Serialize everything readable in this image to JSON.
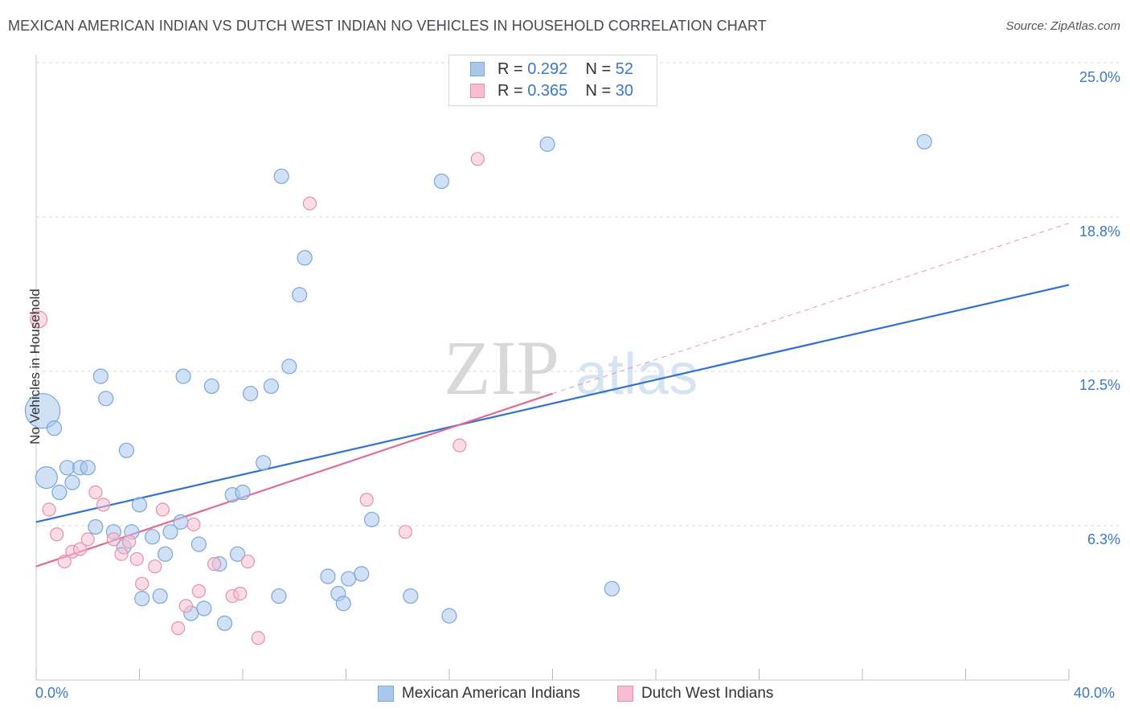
{
  "header": {
    "title": "MEXICAN AMERICAN INDIAN VS DUTCH WEST INDIAN NO VEHICLES IN HOUSEHOLD CORRELATION CHART",
    "source": "Source: ZipAtlas.com"
  },
  "watermark": {
    "zip": "ZIP",
    "atlas": "atlas"
  },
  "legend": {
    "series1": {
      "r_label": "R =",
      "r_value": "0.292",
      "n_label": "N =",
      "n_value": "52"
    },
    "series2": {
      "r_label": "R =",
      "r_value": "0.365",
      "n_label": "N =",
      "n_value": "30"
    }
  },
  "colors": {
    "blue_fill": "#aac8ee",
    "blue_stroke": "#7aa6db",
    "blue_line": "#2f72cf",
    "pink_fill": "#f6bfd0",
    "pink_stroke": "#e88fab",
    "pink_line": "#e06a93",
    "tick_text": "#3a78c9",
    "grid": "#d9d9d9"
  },
  "chart_data": {
    "type": "scatter",
    "title": "MEXICAN AMERICAN INDIAN VS DUTCH WEST INDIAN NO VEHICLES IN HOUSEHOLD CORRELATION CHART",
    "xlabel": "",
    "ylabel": "No Vehicles in Household",
    "xlim": [
      0,
      40
    ],
    "ylim": [
      0,
      25
    ],
    "x_tick_labels": [
      "0.0%",
      "40.0%"
    ],
    "y_ticks": [
      6.25,
      12.5,
      18.75,
      25.0
    ],
    "y_tick_labels": [
      "6.3%",
      "12.5%",
      "18.8%",
      "25.0%"
    ],
    "grid": true,
    "legend_position": "top-center",
    "series": [
      {
        "name": "Mexican American Indians",
        "color": "#aac8ee",
        "trend": {
          "x": [
            0,
            40
          ],
          "y": [
            6.4,
            16.0
          ]
        },
        "points": [
          {
            "x": 0.25,
            "y": 10.9,
            "s": 2.4
          },
          {
            "x": 0.4,
            "y": 8.2,
            "s": 1.5
          },
          {
            "x": 0.7,
            "y": 10.2,
            "s": 1
          },
          {
            "x": 0.9,
            "y": 7.6,
            "s": 1
          },
          {
            "x": 1.2,
            "y": 8.6,
            "s": 1
          },
          {
            "x": 1.4,
            "y": 8.0,
            "s": 1
          },
          {
            "x": 1.7,
            "y": 8.6,
            "s": 1
          },
          {
            "x": 2.0,
            "y": 8.6,
            "s": 1
          },
          {
            "x": 2.3,
            "y": 6.2,
            "s": 1
          },
          {
            "x": 2.5,
            "y": 12.3,
            "s": 1
          },
          {
            "x": 2.7,
            "y": 11.4,
            "s": 1
          },
          {
            "x": 3.0,
            "y": 6.0,
            "s": 1
          },
          {
            "x": 3.4,
            "y": 5.4,
            "s": 1
          },
          {
            "x": 3.5,
            "y": 9.3,
            "s": 1
          },
          {
            "x": 3.7,
            "y": 6.0,
            "s": 1
          },
          {
            "x": 4.0,
            "y": 7.1,
            "s": 1
          },
          {
            "x": 4.1,
            "y": 3.3,
            "s": 1
          },
          {
            "x": 4.5,
            "y": 5.8,
            "s": 1
          },
          {
            "x": 4.8,
            "y": 3.4,
            "s": 1
          },
          {
            "x": 5.0,
            "y": 5.1,
            "s": 1
          },
          {
            "x": 5.2,
            "y": 6.0,
            "s": 1
          },
          {
            "x": 5.6,
            "y": 6.4,
            "s": 1
          },
          {
            "x": 5.7,
            "y": 12.3,
            "s": 1
          },
          {
            "x": 6.0,
            "y": 2.7,
            "s": 1
          },
          {
            "x": 6.3,
            "y": 5.5,
            "s": 1
          },
          {
            "x": 6.5,
            "y": 2.9,
            "s": 1
          },
          {
            "x": 6.8,
            "y": 11.9,
            "s": 1
          },
          {
            "x": 7.1,
            "y": 4.7,
            "s": 1
          },
          {
            "x": 7.3,
            "y": 2.3,
            "s": 1
          },
          {
            "x": 7.6,
            "y": 7.5,
            "s": 1
          },
          {
            "x": 7.8,
            "y": 5.1,
            "s": 1
          },
          {
            "x": 8.0,
            "y": 7.6,
            "s": 1
          },
          {
            "x": 8.3,
            "y": 11.6,
            "s": 1
          },
          {
            "x": 8.8,
            "y": 8.8,
            "s": 1
          },
          {
            "x": 9.1,
            "y": 11.9,
            "s": 1
          },
          {
            "x": 9.4,
            "y": 3.4,
            "s": 1
          },
          {
            "x": 9.5,
            "y": 20.4,
            "s": 1
          },
          {
            "x": 9.8,
            "y": 12.7,
            "s": 1
          },
          {
            "x": 10.2,
            "y": 15.6,
            "s": 1
          },
          {
            "x": 10.4,
            "y": 17.1,
            "s": 1
          },
          {
            "x": 11.3,
            "y": 4.2,
            "s": 1
          },
          {
            "x": 11.7,
            "y": 3.5,
            "s": 1
          },
          {
            "x": 11.9,
            "y": 3.1,
            "s": 1
          },
          {
            "x": 12.1,
            "y": 4.1,
            "s": 1
          },
          {
            "x": 12.6,
            "y": 4.3,
            "s": 1
          },
          {
            "x": 13.0,
            "y": 6.5,
            "s": 1
          },
          {
            "x": 14.5,
            "y": 3.4,
            "s": 1
          },
          {
            "x": 15.7,
            "y": 20.2,
            "s": 1
          },
          {
            "x": 16.0,
            "y": 2.6,
            "s": 1
          },
          {
            "x": 19.8,
            "y": 21.7,
            "s": 1
          },
          {
            "x": 22.3,
            "y": 3.7,
            "s": 1
          },
          {
            "x": 34.4,
            "y": 21.8,
            "s": 1
          }
        ]
      },
      {
        "name": "Dutch West Indians",
        "color": "#f6bfd0",
        "trend": {
          "x": [
            0,
            20
          ],
          "y": [
            4.6,
            11.6
          ]
        },
        "trend_extension": {
          "x": [
            20,
            40
          ],
          "y": [
            11.6,
            18.5
          ]
        },
        "points": [
          {
            "x": 0.1,
            "y": 14.6,
            "s": 1.3
          },
          {
            "x": 0.5,
            "y": 6.9,
            "s": 1
          },
          {
            "x": 0.8,
            "y": 5.9,
            "s": 1
          },
          {
            "x": 1.1,
            "y": 4.8,
            "s": 1
          },
          {
            "x": 1.4,
            "y": 5.2,
            "s": 1
          },
          {
            "x": 1.7,
            "y": 5.3,
            "s": 1
          },
          {
            "x": 2.0,
            "y": 5.7,
            "s": 1
          },
          {
            "x": 2.3,
            "y": 7.6,
            "s": 1
          },
          {
            "x": 2.6,
            "y": 7.1,
            "s": 1
          },
          {
            "x": 3.0,
            "y": 5.7,
            "s": 1
          },
          {
            "x": 3.3,
            "y": 5.1,
            "s": 1
          },
          {
            "x": 3.6,
            "y": 5.6,
            "s": 1
          },
          {
            "x": 3.9,
            "y": 4.9,
            "s": 1
          },
          {
            "x": 4.1,
            "y": 3.9,
            "s": 1
          },
          {
            "x": 4.6,
            "y": 4.6,
            "s": 1
          },
          {
            "x": 4.9,
            "y": 6.9,
            "s": 1
          },
          {
            "x": 5.5,
            "y": 2.1,
            "s": 1
          },
          {
            "x": 5.8,
            "y": 3.0,
            "s": 1
          },
          {
            "x": 6.1,
            "y": 6.3,
            "s": 1
          },
          {
            "x": 6.3,
            "y": 3.6,
            "s": 1
          },
          {
            "x": 6.9,
            "y": 4.7,
            "s": 1
          },
          {
            "x": 7.6,
            "y": 3.4,
            "s": 1
          },
          {
            "x": 7.9,
            "y": 3.5,
            "s": 1
          },
          {
            "x": 8.2,
            "y": 4.8,
            "s": 1
          },
          {
            "x": 8.6,
            "y": 1.7,
            "s": 1
          },
          {
            "x": 10.6,
            "y": 19.3,
            "s": 1
          },
          {
            "x": 12.8,
            "y": 7.3,
            "s": 1
          },
          {
            "x": 14.3,
            "y": 6.0,
            "s": 1
          },
          {
            "x": 16.4,
            "y": 9.5,
            "s": 1
          },
          {
            "x": 17.1,
            "y": 21.1,
            "s": 1
          }
        ]
      }
    ]
  }
}
